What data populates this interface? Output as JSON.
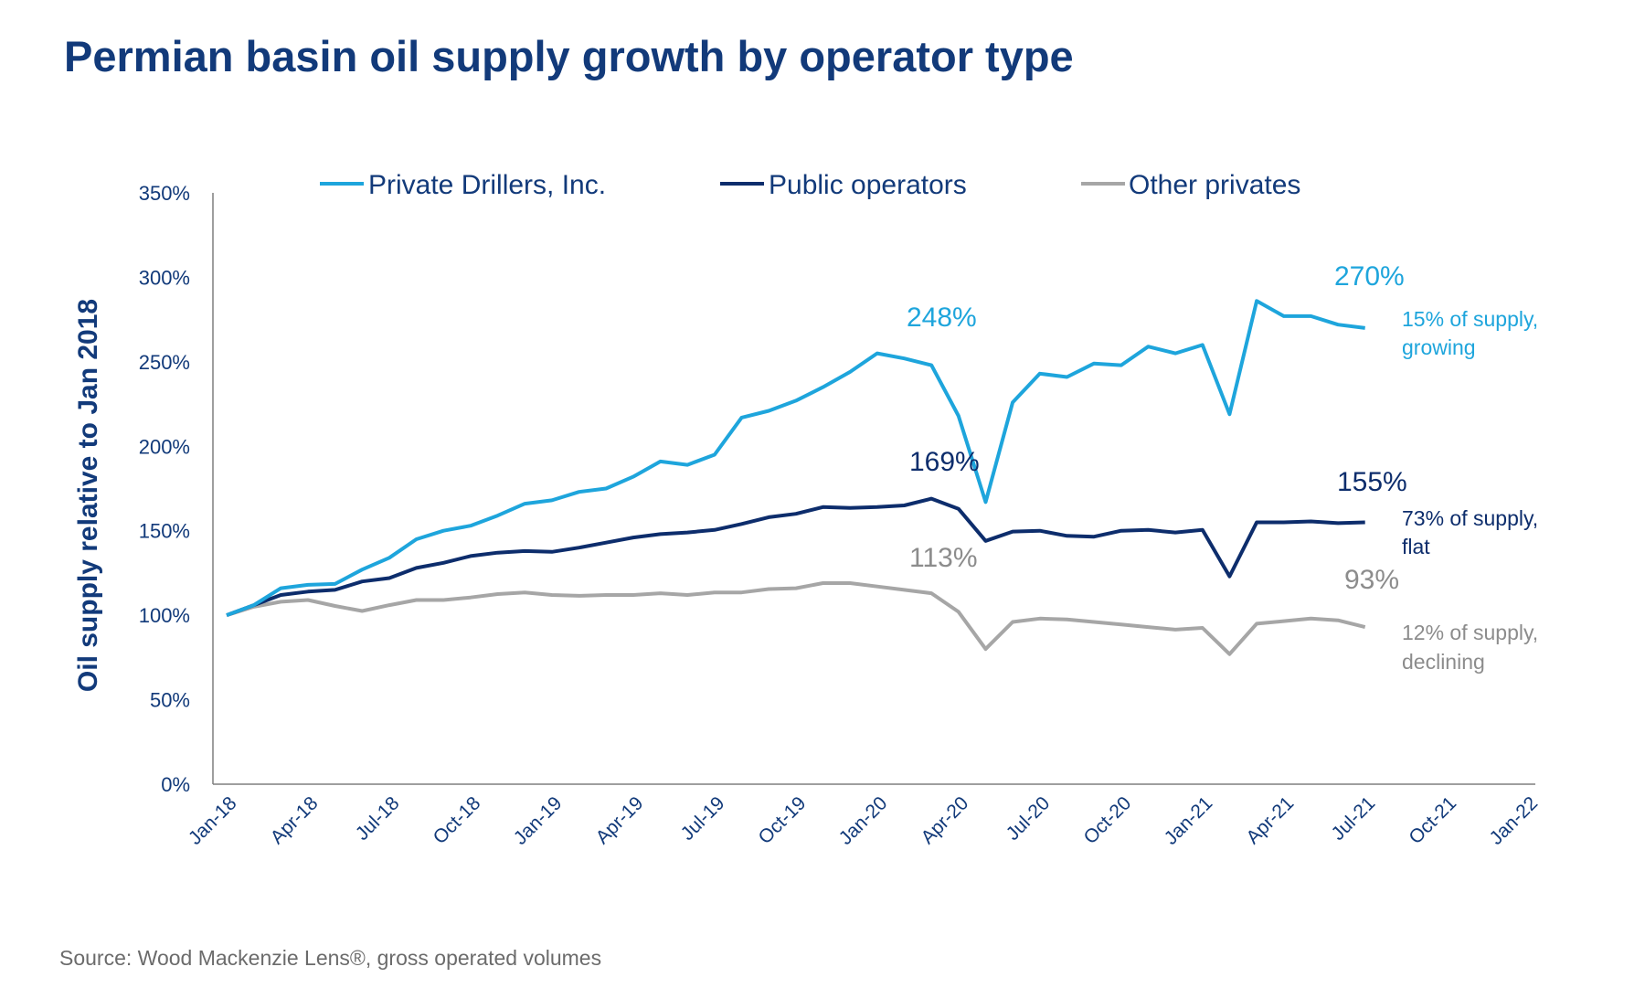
{
  "chart_data": {
    "type": "line",
    "title": "Permian basin oil supply growth by operator type",
    "ylabel": "Oil supply relative to Jan 2018",
    "xlabel": "",
    "ylim": [
      0,
      350
    ],
    "y_ticks": [
      "0%",
      "50%",
      "100%",
      "150%",
      "200%",
      "250%",
      "300%",
      "350%"
    ],
    "x_ticks": [
      "Jan-18",
      "Apr-18",
      "Jul-18",
      "Oct-18",
      "Jan-19",
      "Apr-19",
      "Jul-19",
      "Oct-19",
      "Jan-20",
      "Apr-20",
      "Jul-20",
      "Oct-20",
      "Jan-21",
      "Apr-21",
      "Jul-21",
      "Oct-21",
      "Jan-22"
    ],
    "x_range": [
      "Jan-18",
      "Jan-22"
    ],
    "x": [
      "Jan-18",
      "Feb-18",
      "Mar-18",
      "Apr-18",
      "May-18",
      "Jun-18",
      "Jul-18",
      "Aug-18",
      "Sep-18",
      "Oct-18",
      "Nov-18",
      "Dec-18",
      "Jan-19",
      "Feb-19",
      "Mar-19",
      "Apr-19",
      "May-19",
      "Jun-19",
      "Jul-19",
      "Aug-19",
      "Sep-19",
      "Oct-19",
      "Nov-19",
      "Dec-19",
      "Jan-20",
      "Feb-20",
      "Mar-20",
      "Apr-20",
      "May-20",
      "Jun-20",
      "Jul-20",
      "Aug-20",
      "Sep-20",
      "Oct-20",
      "Nov-20",
      "Dec-20",
      "Jan-21",
      "Feb-21",
      "Mar-21",
      "Apr-21",
      "May-21",
      "Jun-21",
      "Jul-21"
    ],
    "grid": false,
    "legend_position": "top",
    "series": [
      {
        "name": "Private Drillers, Inc.",
        "color": "#1ea5dc",
        "values": [
          100,
          106,
          116,
          118,
          118.5,
          127,
          134,
          145,
          150,
          153,
          159,
          166,
          168,
          173,
          175,
          182,
          191,
          189,
          195,
          217,
          221,
          227,
          235,
          244,
          255,
          252,
          248,
          218,
          167,
          226,
          243,
          241,
          249,
          248,
          259,
          255,
          260,
          219,
          286,
          277,
          277,
          272,
          270
        ]
      },
      {
        "name": "Public operators",
        "color": "#0d2d6c",
        "values": [
          100,
          106,
          112,
          114,
          115,
          120,
          122,
          128,
          131,
          135,
          137,
          138,
          137.5,
          140,
          143,
          146,
          148,
          149,
          150.5,
          154,
          158,
          160,
          164,
          163.5,
          164,
          165,
          169,
          163,
          144,
          149.5,
          150,
          147,
          146.5,
          150,
          150.5,
          149,
          150.5,
          123,
          155,
          155,
          155.5,
          154.5,
          155
        ]
      },
      {
        "name": "Other privates",
        "color": "#a6a6a6",
        "values": [
          100,
          105,
          108,
          109,
          105.5,
          102.5,
          106,
          109,
          109,
          110.5,
          112.5,
          113.5,
          112,
          111.5,
          112,
          112,
          113,
          112,
          113.5,
          113.5,
          115.5,
          116,
          119,
          119,
          117,
          115,
          113,
          102,
          80,
          96,
          98,
          97.5,
          96,
          94.5,
          93,
          91.5,
          92.5,
          77,
          95,
          96.5,
          98,
          97,
          93
        ]
      }
    ],
    "annotations": [
      {
        "text": "248%",
        "series": "Private Drillers, Inc.",
        "at": "Mar-20"
      },
      {
        "text": "270%",
        "series": "Private Drillers, Inc.",
        "at": "Jul-21"
      },
      {
        "text": "169%",
        "series": "Public operators",
        "at": "Mar-20"
      },
      {
        "text": "155%",
        "series": "Public operators",
        "at": "Jul-21"
      },
      {
        "text": "113%",
        "series": "Other privates",
        "at": "Mar-20"
      },
      {
        "text": "93%",
        "series": "Other privates",
        "at": "Jul-21"
      }
    ],
    "notes": [
      {
        "series": "Private Drillers, Inc.",
        "lines": [
          "15% of supply,",
          "growing"
        ]
      },
      {
        "series": "Public operators",
        "lines": [
          "73% of supply,",
          "flat"
        ]
      },
      {
        "series": "Other privates",
        "lines": [
          "12% of supply,",
          "declining"
        ]
      }
    ],
    "source": "Source: Wood Mackenzie Lens®, gross operated volumes"
  }
}
